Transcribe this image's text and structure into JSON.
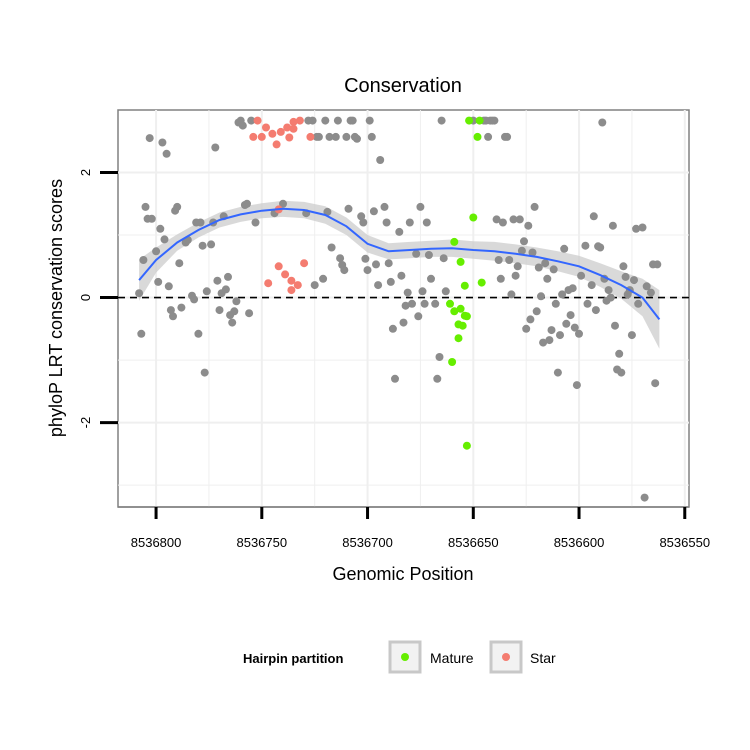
{
  "chart_data": {
    "type": "scatter",
    "title": "Conservation",
    "xlabel": "Genomic Position",
    "ylabel": "phyloP LRT conservation scores",
    "xlim": [
      8536818,
      8536548
    ],
    "ylim": [
      -3.35,
      3.0
    ],
    "x_reversed": true,
    "x_ticks": [
      8536800,
      8536750,
      8536700,
      8536650,
      8536600,
      8536550
    ],
    "x_tick_labels": [
      "8536800",
      "8536750",
      "8536700",
      "8536650",
      "8536600",
      "8536550"
    ],
    "y_ticks": [
      -2,
      0,
      2
    ],
    "y_tick_labels": [
      "-2",
      "0",
      "2"
    ],
    "reference_line": {
      "y": 0,
      "style": "dashed"
    },
    "grid": true,
    "legend": {
      "title": "Hairpin partition",
      "position": "bottom",
      "entries": [
        {
          "name": "Mature",
          "color": "#66ee00"
        },
        {
          "name": "Star",
          "color": "#f47c70"
        }
      ]
    },
    "colors": {
      "other": "#8c8c8c",
      "Mature": "#66ee00",
      "Star": "#f47c70",
      "smooth_line": "#3366ff",
      "smooth_band": "#cccccc"
    },
    "series": [
      {
        "name": "Mature",
        "points": [
          [
            8536659,
            0.89
          ],
          [
            8536656,
            0.57
          ],
          [
            8536652,
            2.83
          ],
          [
            8536650,
            1.28
          ],
          [
            8536648,
            2.57
          ],
          [
            8536647,
            2.83
          ],
          [
            8536646,
            0.24
          ],
          [
            8536654,
            0.19
          ],
          [
            8536661,
            -0.1
          ],
          [
            8536659,
            -0.22
          ],
          [
            8536656,
            -0.18
          ],
          [
            8536654,
            -0.29
          ],
          [
            8536657,
            -0.43
          ],
          [
            8536655,
            -0.45
          ],
          [
            8536653,
            -0.3
          ],
          [
            8536657,
            -0.65
          ],
          [
            8536660,
            -1.03
          ],
          [
            8536653,
            -2.37
          ]
        ]
      },
      {
        "name": "Star",
        "points": [
          [
            8536752,
            2.83
          ],
          [
            8536748,
            2.72
          ],
          [
            8536745,
            2.62
          ],
          [
            8536741,
            2.65
          ],
          [
            8536738,
            2.72
          ],
          [
            8536735,
            2.81
          ],
          [
            8536732,
            2.83
          ],
          [
            8536750,
            2.57
          ],
          [
            8536754,
            2.57
          ],
          [
            8536743,
            2.45
          ],
          [
            8536737,
            2.56
          ],
          [
            8536727,
            2.57
          ],
          [
            8536735,
            2.7
          ],
          [
            8536742,
            1.41
          ],
          [
            8536742,
            0.5
          ],
          [
            8536739,
            0.37
          ],
          [
            8536736,
            0.27
          ],
          [
            8536733,
            0.2
          ],
          [
            8536730,
            0.55
          ],
          [
            8536747,
            0.23
          ],
          [
            8536736,
            0.12
          ]
        ]
      },
      {
        "name": "Other",
        "points": [
          [
            8536808,
            0.07
          ],
          [
            8536807,
            -0.58
          ],
          [
            8536806,
            0.6
          ],
          [
            8536805,
            1.45
          ],
          [
            8536804,
            1.26
          ],
          [
            8536803,
            2.55
          ],
          [
            8536802,
            1.26
          ],
          [
            8536800,
            0.74
          ],
          [
            8536799,
            0.25
          ],
          [
            8536798,
            1.1
          ],
          [
            8536797,
            2.48
          ],
          [
            8536796,
            0.93
          ],
          [
            8536795,
            2.3
          ],
          [
            8536794,
            0.18
          ],
          [
            8536793,
            -0.2
          ],
          [
            8536792,
            -0.3
          ],
          [
            8536791,
            1.39
          ],
          [
            8536790,
            1.45
          ],
          [
            8536789,
            0.55
          ],
          [
            8536788,
            -0.16
          ],
          [
            8536786,
            0.88
          ],
          [
            8536785,
            0.92
          ],
          [
            8536783,
            0.03
          ],
          [
            8536782,
            -0.03
          ],
          [
            8536781,
            1.2
          ],
          [
            8536780,
            -0.58
          ],
          [
            8536779,
            1.2
          ],
          [
            8536778,
            0.83
          ],
          [
            8536777,
            -1.2
          ],
          [
            8536776,
            0.1
          ],
          [
            8536774,
            0.85
          ],
          [
            8536773,
            1.2
          ],
          [
            8536772,
            2.4
          ],
          [
            8536771,
            0.27
          ],
          [
            8536770,
            -0.2
          ],
          [
            8536769,
            0.07
          ],
          [
            8536768,
            1.3
          ],
          [
            8536767,
            0.13
          ],
          [
            8536766,
            0.33
          ],
          [
            8536765,
            -0.28
          ],
          [
            8536764,
            -0.4
          ],
          [
            8536763,
            -0.22
          ],
          [
            8536762,
            -0.06
          ],
          [
            8536761,
            2.8
          ],
          [
            8536760,
            2.83
          ],
          [
            8536759,
            2.75
          ],
          [
            8536758,
            1.48
          ],
          [
            8536757,
            1.5
          ],
          [
            8536756,
            -0.25
          ],
          [
            8536755,
            2.83
          ],
          [
            8536753,
            1.2
          ],
          [
            8536744,
            1.35
          ],
          [
            8536740,
            1.5
          ],
          [
            8536729,
            1.35
          ],
          [
            8536728,
            2.83
          ],
          [
            8536726,
            2.83
          ],
          [
            8536725,
            0.2
          ],
          [
            8536724,
            2.57
          ],
          [
            8536723,
            2.57
          ],
          [
            8536721,
            0.3
          ],
          [
            8536720,
            2.83
          ],
          [
            8536719,
            1.37
          ],
          [
            8536718,
            2.57
          ],
          [
            8536717,
            0.8
          ],
          [
            8536715,
            2.57
          ],
          [
            8536714,
            2.83
          ],
          [
            8536713,
            0.63
          ],
          [
            8536712,
            0.52
          ],
          [
            8536711,
            0.44
          ],
          [
            8536710,
            2.57
          ],
          [
            8536709,
            1.42
          ],
          [
            8536708,
            2.83
          ],
          [
            8536707,
            2.83
          ],
          [
            8536706,
            2.57
          ],
          [
            8536705,
            2.54
          ],
          [
            8536703,
            1.3
          ],
          [
            8536702,
            1.2
          ],
          [
            8536701,
            0.62
          ],
          [
            8536700,
            0.44
          ],
          [
            8536699,
            2.83
          ],
          [
            8536698,
            2.57
          ],
          [
            8536697,
            1.38
          ],
          [
            8536696,
            0.53
          ],
          [
            8536695,
            0.2
          ],
          [
            8536694,
            2.2
          ],
          [
            8536692,
            1.45
          ],
          [
            8536691,
            1.2
          ],
          [
            8536690,
            0.55
          ],
          [
            8536689,
            0.25
          ],
          [
            8536688,
            -0.5
          ],
          [
            8536687,
            -1.3
          ],
          [
            8536685,
            1.05
          ],
          [
            8536684,
            0.35
          ],
          [
            8536683,
            -0.4
          ],
          [
            8536682,
            -0.13
          ],
          [
            8536681,
            0.08
          ],
          [
            8536680,
            1.2
          ],
          [
            8536679,
            -0.1
          ],
          [
            8536677,
            0.7
          ],
          [
            8536676,
            -0.3
          ],
          [
            8536675,
            1.45
          ],
          [
            8536674,
            0.1
          ],
          [
            8536673,
            -0.1
          ],
          [
            8536672,
            1.2
          ],
          [
            8536671,
            0.68
          ],
          [
            8536670,
            0.3
          ],
          [
            8536668,
            -0.1
          ],
          [
            8536667,
            -1.3
          ],
          [
            8536666,
            -0.95
          ],
          [
            8536665,
            2.83
          ],
          [
            8536664,
            0.63
          ],
          [
            8536663,
            0.1
          ],
          [
            8536650,
            2.83
          ],
          [
            8536645,
            2.83
          ],
          [
            8536644,
            2.83
          ],
          [
            8536643,
            2.57
          ],
          [
            8536642,
            2.83
          ],
          [
            8536641,
            2.83
          ],
          [
            8536640,
            2.83
          ],
          [
            8536639,
            1.25
          ],
          [
            8536638,
            0.6
          ],
          [
            8536637,
            0.3
          ],
          [
            8536636,
            1.2
          ],
          [
            8536635,
            2.57
          ],
          [
            8536634,
            2.57
          ],
          [
            8536633,
            0.6
          ],
          [
            8536632,
            0.05
          ],
          [
            8536631,
            1.25
          ],
          [
            8536630,
            0.35
          ],
          [
            8536629,
            0.5
          ],
          [
            8536628,
            1.25
          ],
          [
            8536627,
            0.75
          ],
          [
            8536626,
            0.9
          ],
          [
            8536625,
            -0.5
          ],
          [
            8536624,
            1.15
          ],
          [
            8536623,
            -0.35
          ],
          [
            8536622,
            0.72
          ],
          [
            8536621,
            1.45
          ],
          [
            8536620,
            -0.22
          ],
          [
            8536619,
            0.48
          ],
          [
            8536618,
            0.02
          ],
          [
            8536617,
            -0.72
          ],
          [
            8536616,
            0.55
          ],
          [
            8536615,
            0.3
          ],
          [
            8536614,
            -0.68
          ],
          [
            8536613,
            -0.52
          ],
          [
            8536612,
            0.45
          ],
          [
            8536611,
            -0.1
          ],
          [
            8536610,
            -1.2
          ],
          [
            8536609,
            -0.6
          ],
          [
            8536608,
            0.05
          ],
          [
            8536607,
            0.78
          ],
          [
            8536606,
            -0.42
          ],
          [
            8536605,
            0.12
          ],
          [
            8536604,
            -0.28
          ],
          [
            8536603,
            0.15
          ],
          [
            8536602,
            -0.48
          ],
          [
            8536601,
            -1.4
          ],
          [
            8536600,
            -0.58
          ],
          [
            8536599,
            0.35
          ],
          [
            8536597,
            0.83
          ],
          [
            8536596,
            -0.1
          ],
          [
            8536594,
            0.2
          ],
          [
            8536593,
            1.3
          ],
          [
            8536592,
            -0.2
          ],
          [
            8536590,
            0.8
          ],
          [
            8536589,
            2.8
          ],
          [
            8536588,
            0.3
          ],
          [
            8536587,
            -0.05
          ],
          [
            8536586,
            0.12
          ],
          [
            8536585,
            0.0
          ],
          [
            8536584,
            1.15
          ],
          [
            8536583,
            -0.45
          ],
          [
            8536582,
            -1.15
          ],
          [
            8536581,
            -0.9
          ],
          [
            8536580,
            -1.2
          ],
          [
            8536579,
            0.5
          ],
          [
            8536578,
            0.33
          ],
          [
            8536577,
            0.05
          ],
          [
            8536576,
            0.12
          ],
          [
            8536575,
            -0.6
          ],
          [
            8536574,
            0.28
          ],
          [
            8536573,
            1.1
          ],
          [
            8536572,
            -0.1
          ],
          [
            8536570,
            1.12
          ],
          [
            8536569,
            -3.2
          ],
          [
            8536568,
            0.18
          ],
          [
            8536566,
            0.08
          ],
          [
            8536565,
            0.53
          ],
          [
            8536564,
            -1.37
          ],
          [
            8536563,
            0.53
          ],
          [
            8536591,
            0.82
          ]
        ]
      }
    ],
    "smooth_fit": {
      "method": "loess",
      "x": [
        8536808,
        8536800,
        8536790,
        8536780,
        8536770,
        8536760,
        8536750,
        8536740,
        8536730,
        8536720,
        8536710,
        8536700,
        8536690,
        8536680,
        8536670,
        8536660,
        8536650,
        8536640,
        8536630,
        8536620,
        8536610,
        8536600,
        8536590,
        8536580,
        8536570,
        8536562
      ],
      "y": [
        0.28,
        0.6,
        0.88,
        1.08,
        1.24,
        1.33,
        1.39,
        1.42,
        1.4,
        1.32,
        1.14,
        0.86,
        0.74,
        0.76,
        0.78,
        0.79,
        0.76,
        0.74,
        0.7,
        0.65,
        0.58,
        0.5,
        0.36,
        0.2,
        0.0,
        -0.35
      ],
      "lower": [
        -0.05,
        0.4,
        0.75,
        0.96,
        1.12,
        1.21,
        1.27,
        1.29,
        1.27,
        1.18,
        1.0,
        0.72,
        0.61,
        0.63,
        0.65,
        0.65,
        0.62,
        0.59,
        0.55,
        0.5,
        0.42,
        0.33,
        0.17,
        -0.02,
        -0.3,
        -0.82
      ],
      "upper": [
        0.61,
        0.8,
        1.01,
        1.2,
        1.36,
        1.45,
        1.51,
        1.55,
        1.53,
        1.46,
        1.28,
        1.0,
        0.87,
        0.89,
        0.91,
        0.93,
        0.9,
        0.89,
        0.85,
        0.8,
        0.74,
        0.67,
        0.55,
        0.42,
        0.3,
        0.12
      ]
    }
  }
}
